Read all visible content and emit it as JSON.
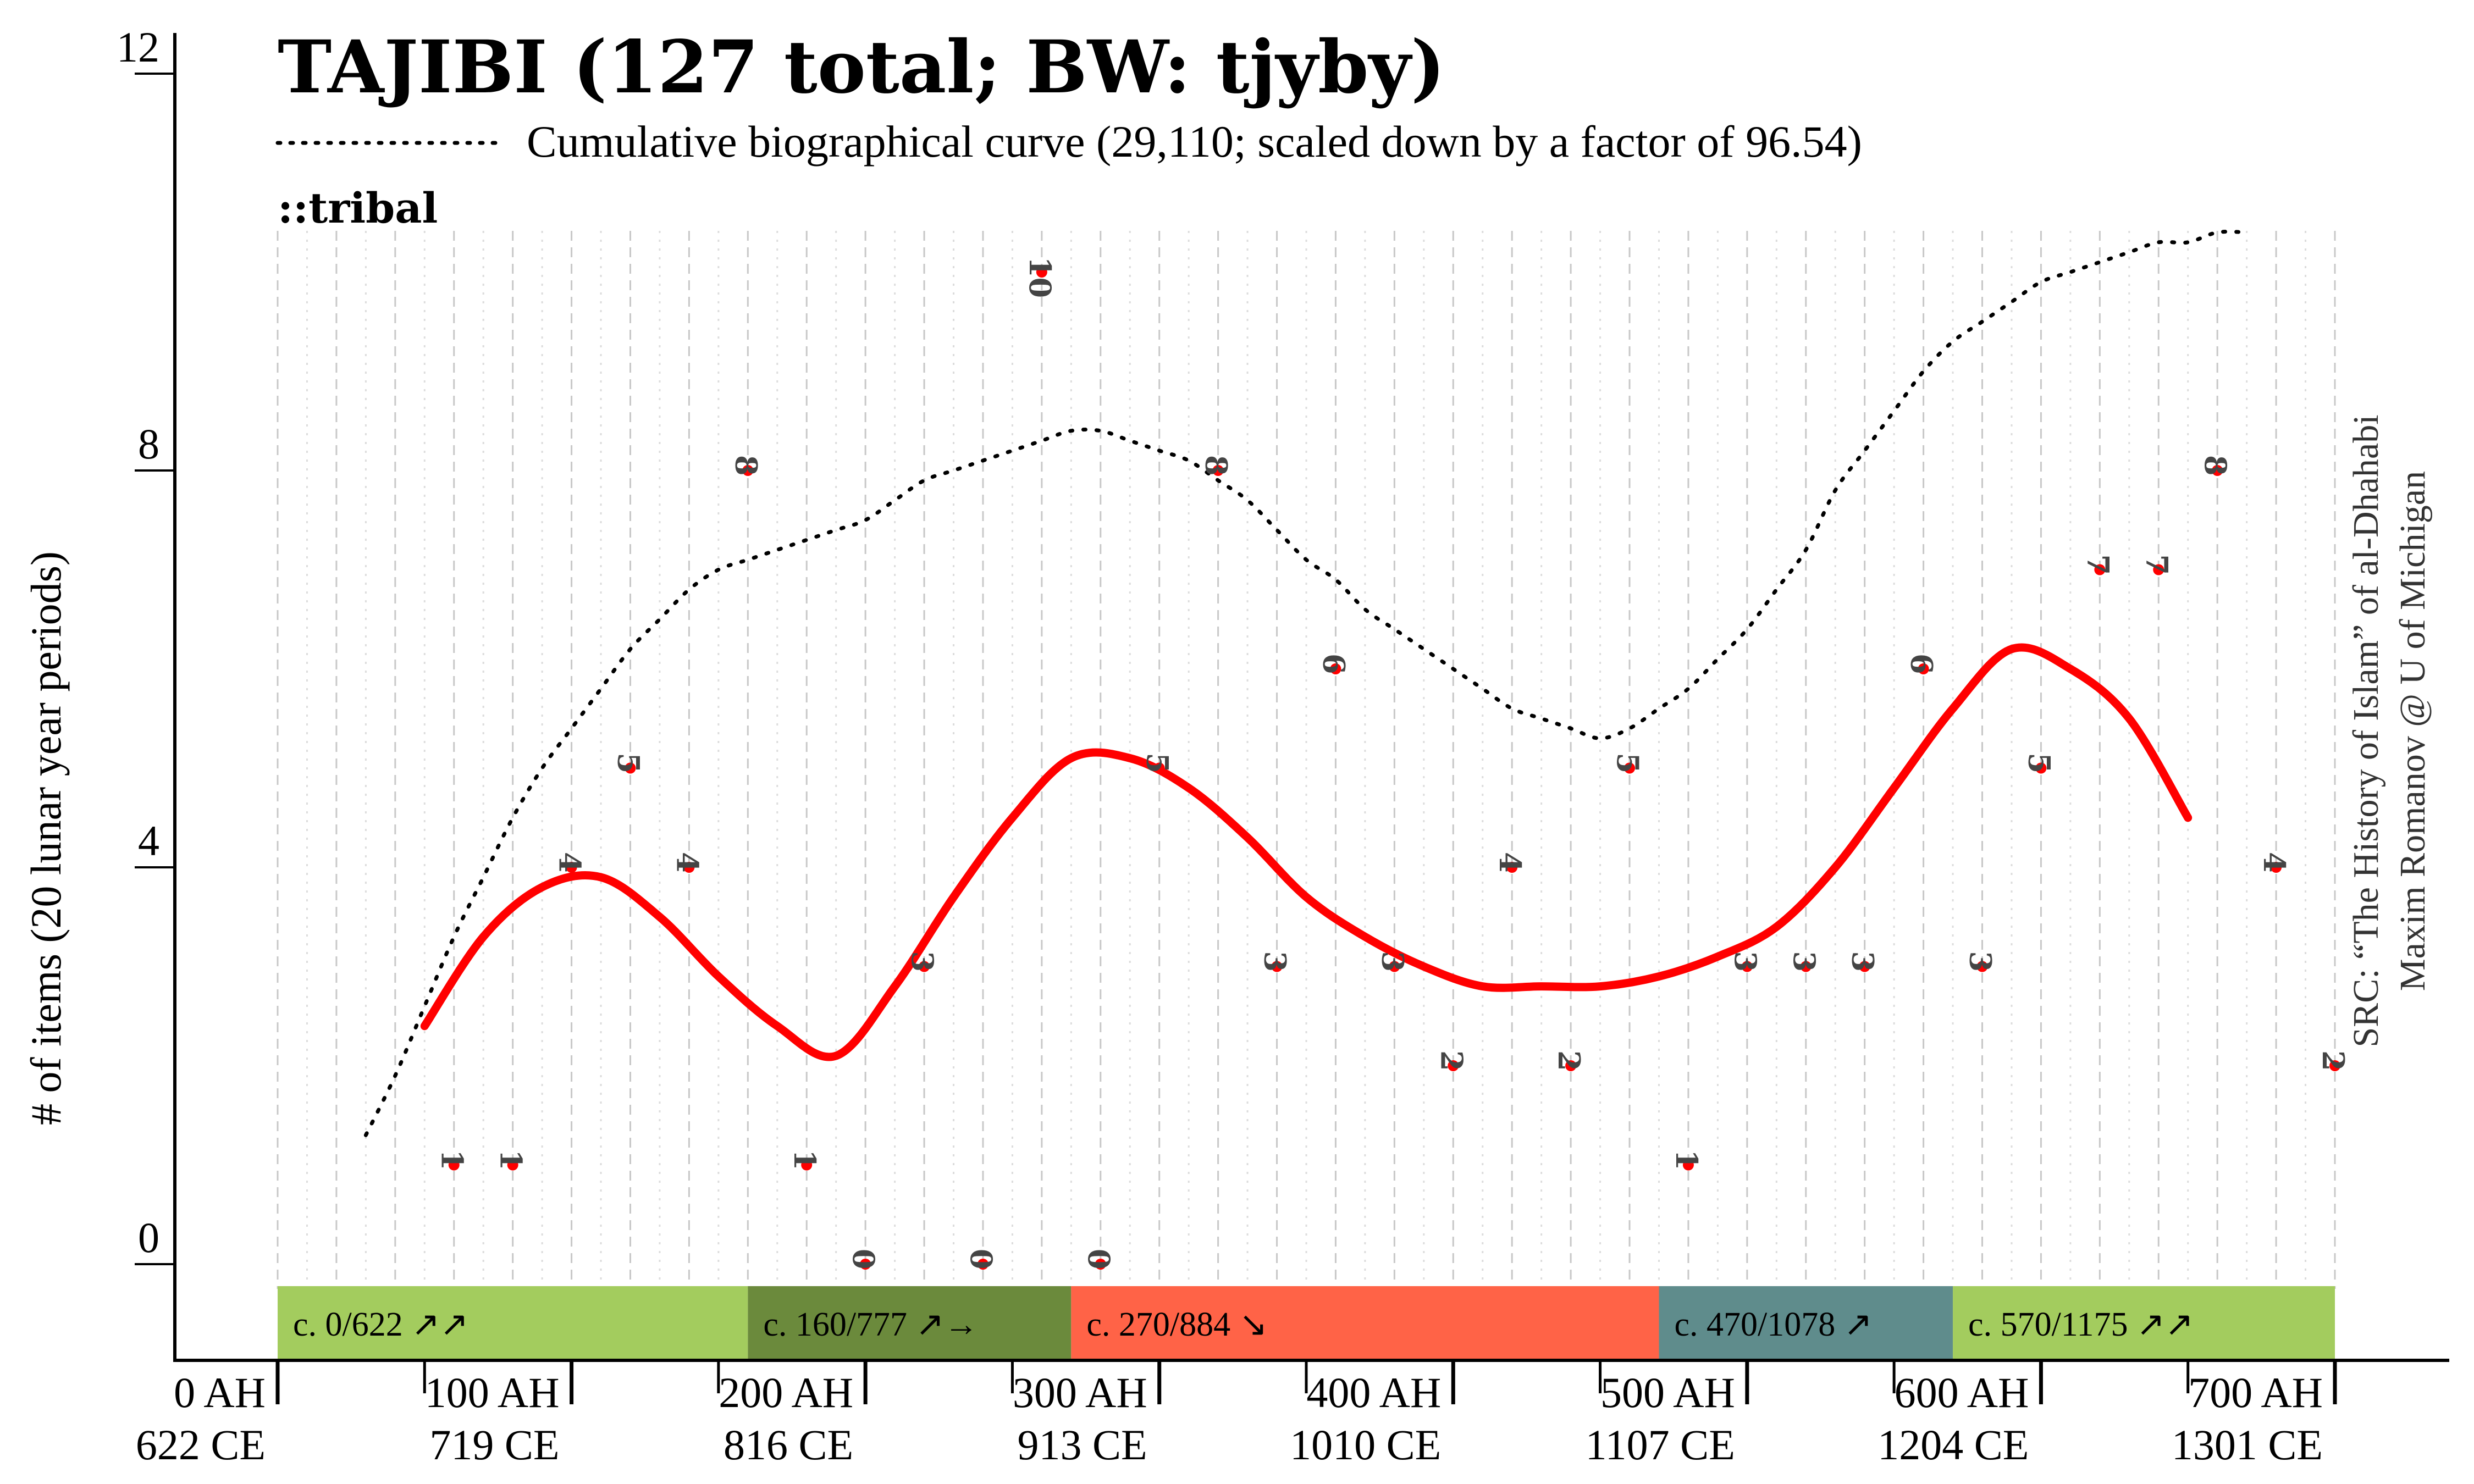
{
  "chart_data": {
    "type": "line",
    "title": "TAJIBI (127 total; BW: tjyby)",
    "subtitle_tag": "::tribal",
    "cumulative_legend": "Cumulative biographical curve (29,110; scaled down by a factor of 96.54)",
    "ylabel": "# of items (20 lunar year periods)",
    "ylim": [
      -0.8,
      12.4
    ],
    "xlim": [
      0,
      700
    ],
    "grid": "vertical dashed",
    "yticks": [
      {
        "value": 0,
        "label": "0"
      },
      {
        "value": 4,
        "label": "4"
      },
      {
        "value": 8,
        "label": "8"
      },
      {
        "value": 12,
        "label": "12"
      }
    ],
    "xticks": [
      {
        "value": 0,
        "ah": "0 AH",
        "ce": "622 CE"
      },
      {
        "value": 100,
        "ah": "100 AH",
        "ce": "719 CE"
      },
      {
        "value": 200,
        "ah": "200 AH",
        "ce": "816 CE"
      },
      {
        "value": 300,
        "ah": "300 AH",
        "ce": "913 CE"
      },
      {
        "value": 400,
        "ah": "400 AH",
        "ce": "1010 CE"
      },
      {
        "value": 500,
        "ah": "500 AH",
        "ce": "1107 CE"
      },
      {
        "value": 600,
        "ah": "600 AH",
        "ce": "1204 CE"
      },
      {
        "value": 700,
        "ah": "700 AH",
        "ce": "1301 CE"
      }
    ],
    "points": [
      {
        "x": 60,
        "y": 1,
        "label": "1"
      },
      {
        "x": 80,
        "y": 1,
        "label": "1"
      },
      {
        "x": 100,
        "y": 4,
        "label": "4"
      },
      {
        "x": 120,
        "y": 5,
        "label": "5"
      },
      {
        "x": 140,
        "y": 4,
        "label": "4"
      },
      {
        "x": 160,
        "y": 8,
        "label": "8"
      },
      {
        "x": 180,
        "y": 1,
        "label": "1"
      },
      {
        "x": 200,
        "y": 0,
        "label": "0"
      },
      {
        "x": 220,
        "y": 3,
        "label": "3"
      },
      {
        "x": 240,
        "y": 0,
        "label": "0"
      },
      {
        "x": 260,
        "y": 10,
        "label": "10"
      },
      {
        "x": 280,
        "y": 0,
        "label": "0"
      },
      {
        "x": 300,
        "y": 5,
        "label": "5"
      },
      {
        "x": 320,
        "y": 8,
        "label": "8"
      },
      {
        "x": 340,
        "y": 3,
        "label": "3"
      },
      {
        "x": 360,
        "y": 6,
        "label": "6"
      },
      {
        "x": 380,
        "y": 3,
        "label": "3"
      },
      {
        "x": 400,
        "y": 2,
        "label": "2"
      },
      {
        "x": 420,
        "y": 4,
        "label": "4"
      },
      {
        "x": 440,
        "y": 2,
        "label": "2"
      },
      {
        "x": 460,
        "y": 5,
        "label": "5"
      },
      {
        "x": 480,
        "y": 1,
        "label": "1"
      },
      {
        "x": 500,
        "y": 3,
        "label": "3"
      },
      {
        "x": 520,
        "y": 3,
        "label": "3"
      },
      {
        "x": 540,
        "y": 3,
        "label": "3"
      },
      {
        "x": 560,
        "y": 6,
        "label": "6"
      },
      {
        "x": 580,
        "y": 3,
        "label": "3"
      },
      {
        "x": 600,
        "y": 5,
        "label": "5"
      },
      {
        "x": 620,
        "y": 7,
        "label": "7"
      },
      {
        "x": 640,
        "y": 7,
        "label": "7"
      },
      {
        "x": 660,
        "y": 8,
        "label": "8"
      },
      {
        "x": 680,
        "y": 4,
        "label": "4"
      },
      {
        "x": 700,
        "y": 2,
        "label": "2"
      }
    ],
    "series": [
      {
        "name": "smoothed",
        "color": "#ff0000",
        "x": [
          50,
          70,
          90,
          110,
          130,
          150,
          170,
          190,
          210,
          230,
          250,
          270,
          290,
          310,
          330,
          350,
          370,
          390,
          410,
          430,
          450,
          470,
          490,
          510,
          530,
          550,
          570,
          590,
          610,
          630,
          650
        ],
        "y": [
          2.4,
          3.3,
          3.8,
          3.9,
          3.5,
          2.9,
          2.4,
          2.1,
          2.8,
          3.7,
          4.5,
          5.1,
          5.1,
          4.8,
          4.3,
          3.7,
          3.3,
          3.0,
          2.8,
          2.8,
          2.8,
          2.9,
          3.1,
          3.4,
          4.0,
          4.8,
          5.6,
          6.2,
          6.0,
          5.5,
          4.5
        ]
      },
      {
        "name": "cumulative",
        "color": "#000000",
        "x": [
          30,
          40,
          50,
          60,
          70,
          80,
          90,
          100,
          110,
          120,
          130,
          140,
          150,
          160,
          170,
          180,
          190,
          200,
          210,
          220,
          230,
          240,
          250,
          260,
          270,
          280,
          290,
          300,
          310,
          320,
          330,
          340,
          350,
          360,
          370,
          380,
          390,
          400,
          410,
          420,
          430,
          440,
          450,
          460,
          470,
          480,
          490,
          500,
          510,
          520,
          530,
          540,
          550,
          560,
          570,
          580,
          590,
          600,
          610,
          620,
          630,
          640,
          650,
          660,
          670
        ],
        "y": [
          1.3,
          1.9,
          2.6,
          3.3,
          3.9,
          4.5,
          5.0,
          5.4,
          5.8,
          6.2,
          6.5,
          6.8,
          7.0,
          7.1,
          7.2,
          7.3,
          7.4,
          7.5,
          7.7,
          7.9,
          8.0,
          8.1,
          8.2,
          8.3,
          8.4,
          8.4,
          8.3,
          8.2,
          8.1,
          7.9,
          7.7,
          7.4,
          7.1,
          6.9,
          6.6,
          6.4,
          6.2,
          6.0,
          5.8,
          5.6,
          5.5,
          5.4,
          5.3,
          5.4,
          5.6,
          5.8,
          6.1,
          6.4,
          6.8,
          7.2,
          7.8,
          8.2,
          8.6,
          9.0,
          9.3,
          9.5,
          9.7,
          9.9,
          10.0,
          10.1,
          10.2,
          10.3,
          10.3,
          10.4,
          10.4
        ]
      }
    ],
    "periods": [
      {
        "start": 0,
        "end": 160,
        "label": "c. 0/622 ↗↗",
        "color": "#a3cc5e"
      },
      {
        "start": 160,
        "end": 270,
        "label": "c. 160/777 ↗→",
        "color": "#6b8a3c"
      },
      {
        "start": 270,
        "end": 470,
        "label": "c. 270/884 ↘",
        "color": "#ff6347"
      },
      {
        "start": 470,
        "end": 570,
        "label": "c. 470/1078 ↗",
        "color": "#5f8c8c"
      },
      {
        "start": 570,
        "end": 700,
        "label": "c. 570/1175 ↗↗",
        "color": "#a3cc5e"
      }
    ],
    "source_line1": "SRC: “The History of Islam” of al-Dhahabi",
    "source_line2": "Maxim Romanov @ U of Michigan"
  }
}
